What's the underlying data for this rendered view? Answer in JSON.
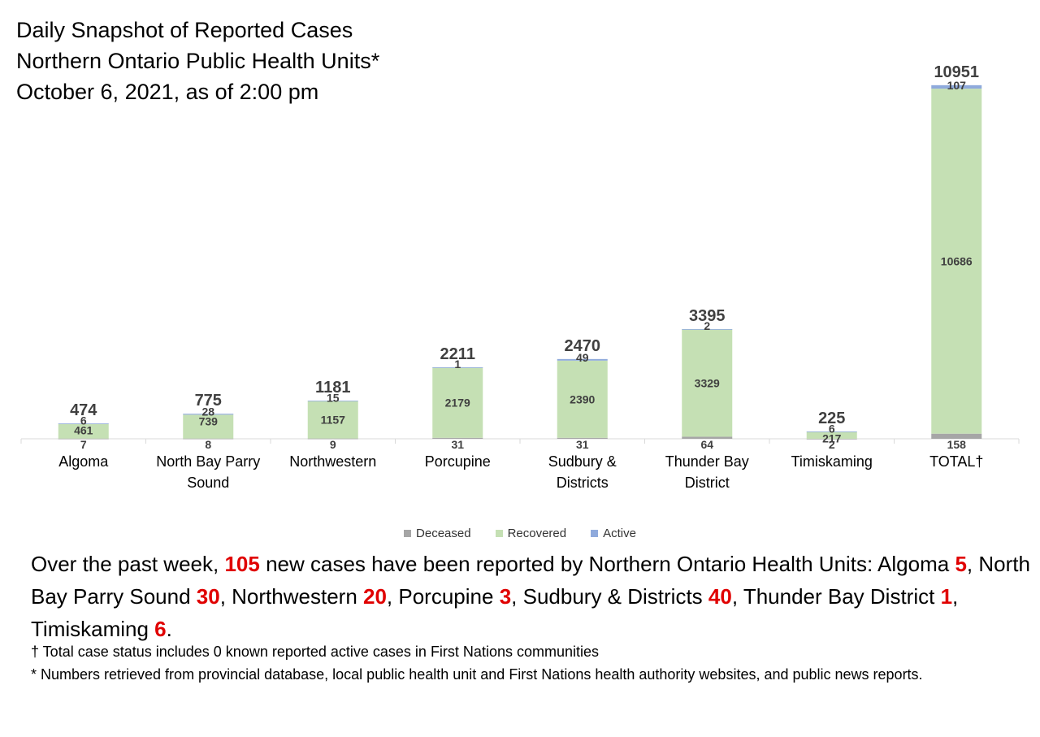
{
  "title": {
    "line1": "Daily Snapshot of Reported Cases",
    "line2": "Northern Ontario Public Health Units*",
    "line3": "October 6, 2021, as of 2:00 pm"
  },
  "chart_data": {
    "type": "bar",
    "stacked": true,
    "categories": [
      [
        "Algoma"
      ],
      [
        "North Bay Parry",
        "Sound"
      ],
      [
        "Northwestern"
      ],
      [
        "Porcupine"
      ],
      [
        "Sudbury &",
        "Districts"
      ],
      [
        "Thunder Bay",
        "District"
      ],
      [
        "Timiskaming"
      ],
      [
        "TOTAL†"
      ]
    ],
    "series": [
      {
        "name": "Deceased",
        "color": "#a6a6a6",
        "values": [
          7,
          8,
          9,
          31,
          31,
          64,
          2,
          158
        ]
      },
      {
        "name": "Recovered",
        "color": "#c5e0b4",
        "values": [
          461,
          739,
          1157,
          2179,
          2390,
          3329,
          217,
          10686
        ]
      },
      {
        "name": "Active",
        "color": "#8faadc",
        "values": [
          6,
          28,
          15,
          1,
          49,
          2,
          6,
          107
        ]
      }
    ],
    "totals": [
      474,
      775,
      1181,
      2211,
      2470,
      3395,
      225,
      10951
    ],
    "ylim": [
      0,
      11400
    ],
    "grid": false,
    "legend": "bottom"
  },
  "summary": {
    "p1": "Over the past week, ",
    "total_new": "105",
    "p2": " new cases have been reported by Northern Ontario Health Units: ",
    "items": [
      {
        "name": "Algoma ",
        "value": "5",
        "sep": ", "
      },
      {
        "name": "North Bay Parry Sound ",
        "value": "30",
        "sep": ", "
      },
      {
        "name": "Northwestern ",
        "value": "20",
        "sep": ", "
      },
      {
        "name": "Porcupine ",
        "value": "3",
        "sep": ", "
      },
      {
        "name": "Sudbury & Districts ",
        "value": "40",
        "sep": ", "
      },
      {
        "name": "Thunder Bay District ",
        "value": "1",
        "sep": ", "
      },
      {
        "name": "Timiskaming ",
        "value": "6",
        "sep": "."
      }
    ]
  },
  "notes": {
    "dagger": "† Total case status includes 0 known reported active cases in First Nations communities",
    "asterisk": "* Numbers retrieved from provincial database, local public health unit and First Nations health authority websites, and public news reports."
  }
}
